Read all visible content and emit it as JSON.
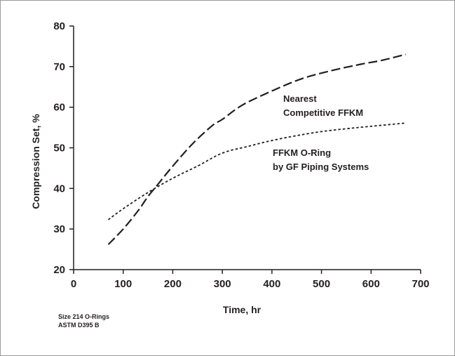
{
  "chart_data": {
    "type": "line",
    "title": "",
    "xlabel": "Time, hr",
    "ylabel": "Compression Set, %",
    "xlim": [
      0,
      700
    ],
    "ylim": [
      20,
      80
    ],
    "xticks": [
      "0",
      "100",
      "200",
      "300",
      "400",
      "500",
      "600",
      "700"
    ],
    "yticks": [
      "20",
      "30",
      "40",
      "50",
      "60",
      "70",
      "80"
    ],
    "grid": false,
    "legend": "none",
    "series": [
      {
        "name": "Nearest Competitive FFKM",
        "label_lines": [
          "Nearest",
          "Competitive FFKM"
        ],
        "style": "dashed",
        "color": "#231f20",
        "x": [
          70,
          100,
          130,
          150,
          170,
          200,
          240,
          280,
          300,
          340,
          400,
          460,
          520,
          580,
          620,
          670
        ],
        "y": [
          26.2,
          30,
          34.5,
          38,
          41,
          45.5,
          51,
          55.5,
          57,
          60.5,
          64,
          67,
          69,
          70.6,
          71.5,
          73
        ]
      },
      {
        "name": "FFKM O-Ring by GF Piping Systems",
        "label_lines": [
          "FFKM O-Ring",
          "by GF Piping Systems"
        ],
        "style": "dotted",
        "color": "#231f20",
        "x": [
          70,
          100,
          150,
          200,
          250,
          300,
          350,
          400,
          450,
          500,
          550,
          600,
          670
        ],
        "y": [
          32.3,
          35,
          39,
          42.5,
          45.5,
          48.7,
          50.3,
          51.8,
          53,
          54,
          54.7,
          55.3,
          56.1
        ]
      }
    ],
    "notes": [
      "Size 214 O-Rings",
      "ASTM D395 B"
    ]
  }
}
